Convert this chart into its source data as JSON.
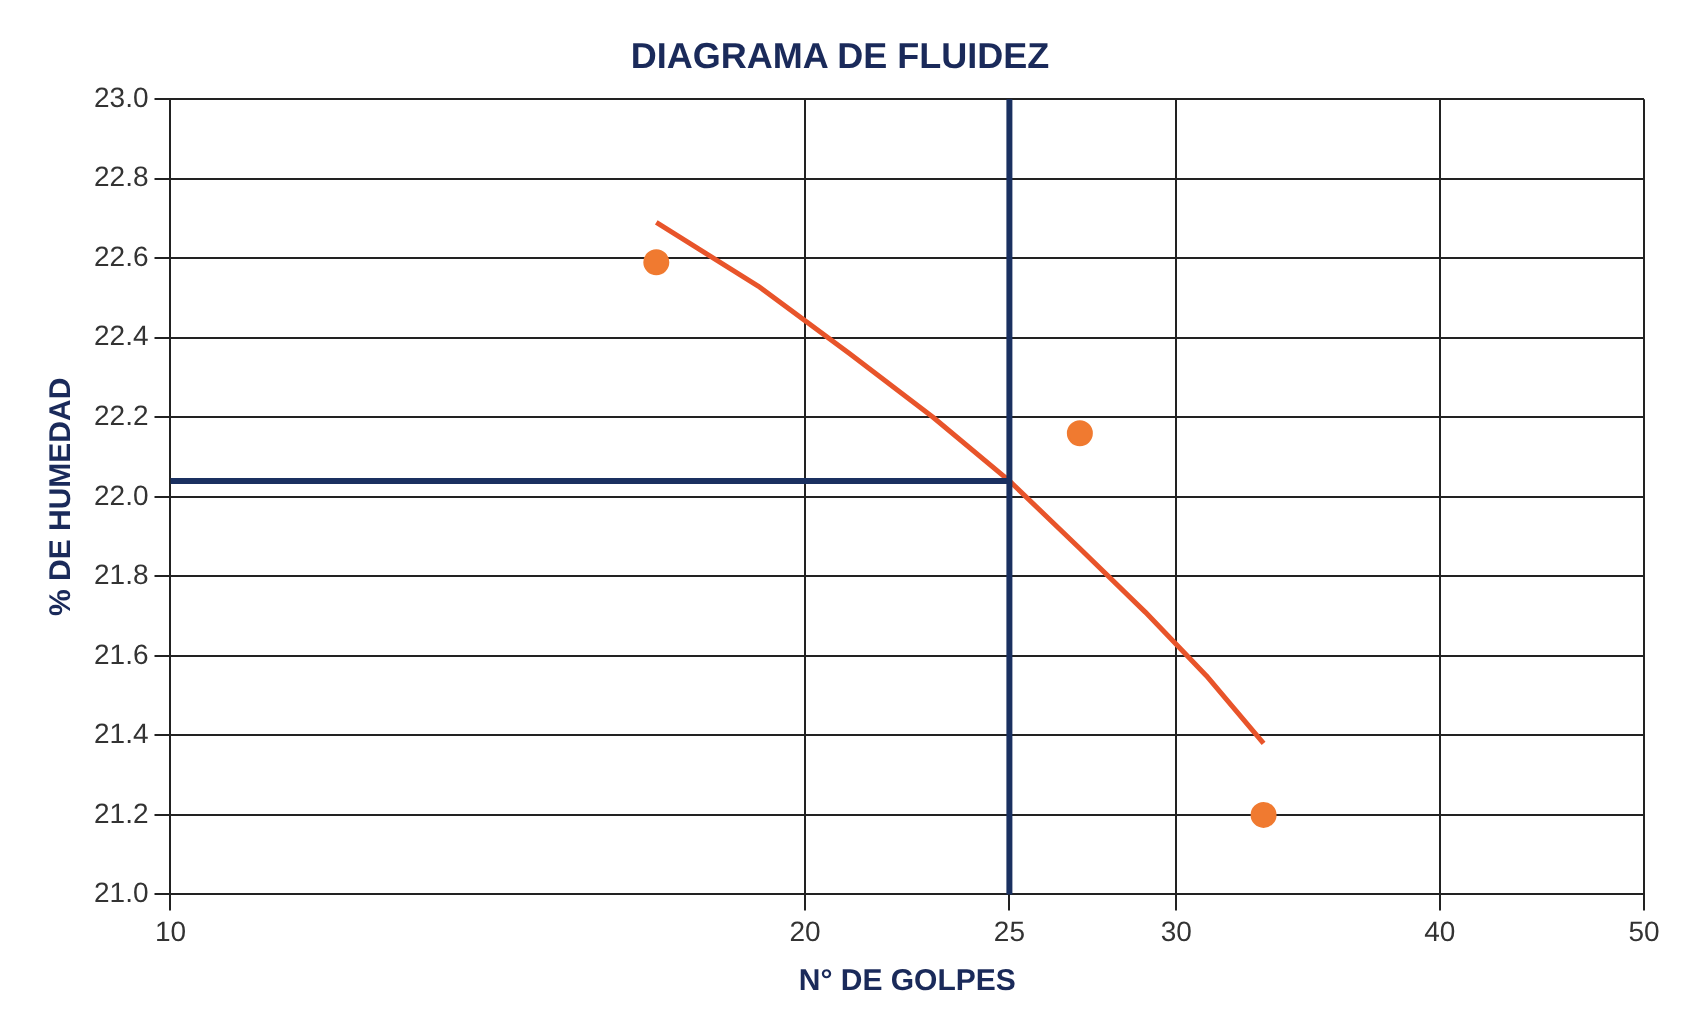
{
  "chart_data": {
    "type": "scatter",
    "title": "DIAGRAMA DE FLUIDEZ",
    "xlabel": "N° DE GOLPES",
    "ylabel": "% DE HUMEDAD",
    "log": "x",
    "xlim": [
      10,
      50
    ],
    "xticks": [
      10,
      20,
      25,
      30,
      40,
      50
    ],
    "ylim": [
      21.0,
      23.0
    ],
    "yticks": [
      {
        "value": 21,
        "label": "21.0"
      },
      21.2,
      21.4,
      21.6,
      21.8,
      {
        "value": 22,
        "label": "22.0"
      },
      22.2,
      22.4,
      22.6,
      22.8,
      {
        "value": 23,
        "label": "23.0"
      }
    ],
    "grid": true,
    "legend": false,
    "series": [
      {
        "color": "#f07a30",
        "marker": "circle",
        "x": [
          17,
          27,
          33
        ],
        "values": [
          22.59,
          22.16,
          21.2
        ]
      },
      {
        "type": "line",
        "color": "#e8542a",
        "marker": "none",
        "line_style": "solid",
        "x": [
          17,
          19,
          21,
          23,
          25,
          27,
          29,
          31,
          33
        ],
        "values": [
          22.69,
          22.53,
          22.36,
          22.2,
          22.04,
          21.87,
          21.71,
          21.55,
          21.38
        ]
      }
    ],
    "ref_lines": [
      {
        "axis": "x",
        "value": 25,
        "color": "#1a3060"
      },
      {
        "axis": "y",
        "value": 22.04,
        "color": "#1a3060"
      }
    ]
  }
}
